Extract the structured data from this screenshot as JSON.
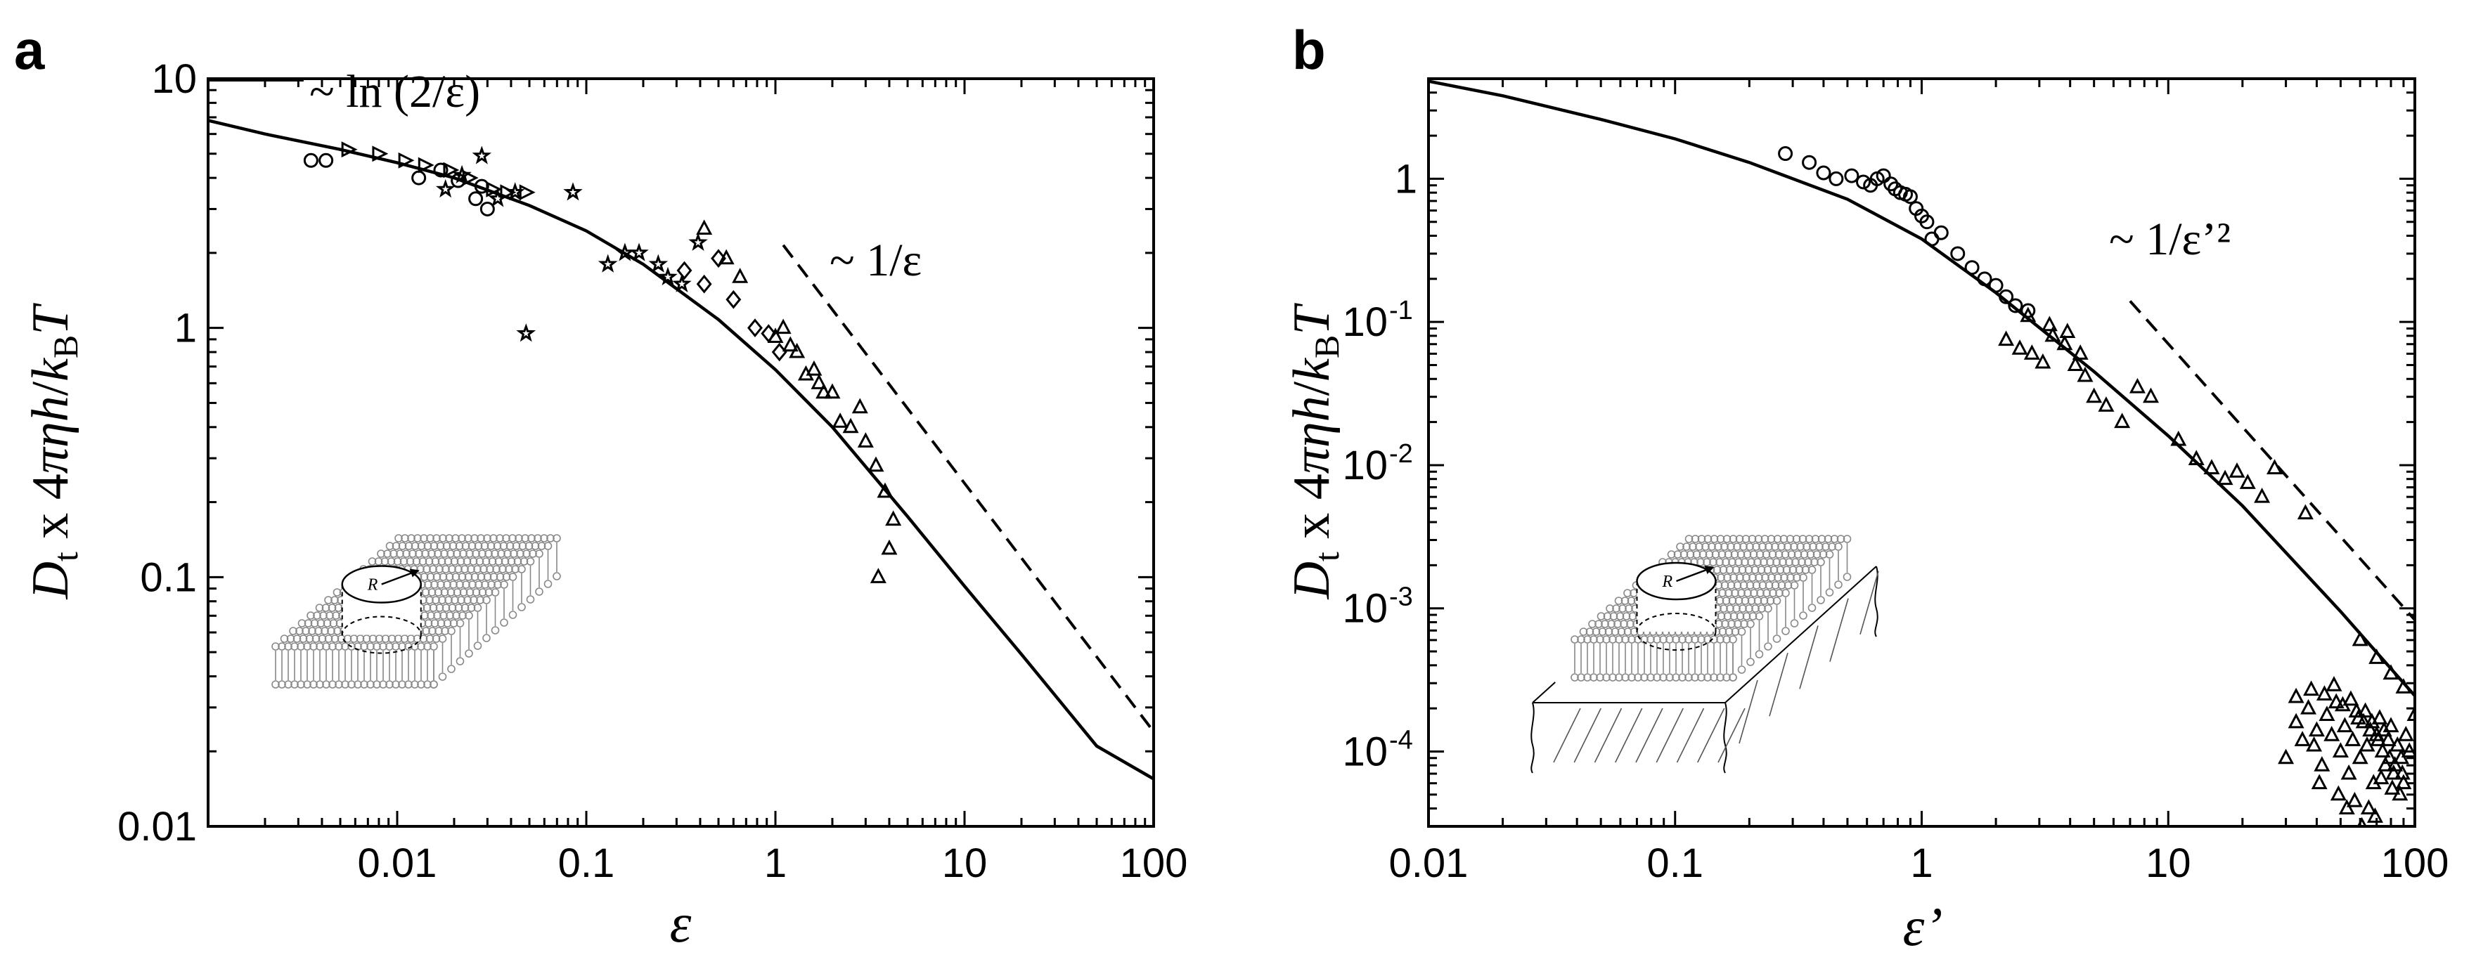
{
  "chart_data": [
    {
      "panel": "a",
      "type": "scatter",
      "xscale": "log",
      "yscale": "log",
      "xlim": [
        0.001,
        100
      ],
      "ylim": [
        0.01,
        10
      ],
      "xlabel": "ε",
      "ylabel": "D_t x 4πηh/k_BT",
      "ylabel_parts": {
        "main": "D",
        "sub_t": "t",
        "mid": " x 4πηh/k",
        "sub_b": "B",
        "end": "T"
      },
      "xticks": [
        {
          "v": 0.01,
          "label": "0.01"
        },
        {
          "v": 0.1,
          "label": "0.1"
        },
        {
          "v": 1,
          "label": "1"
        },
        {
          "v": 10,
          "label": "10"
        },
        {
          "v": 100,
          "label": "100"
        }
      ],
      "yticks": [
        {
          "v": 0.01,
          "label": "0.01"
        },
        {
          "v": 0.1,
          "label": "0.1"
        },
        {
          "v": 1,
          "label": "1"
        },
        {
          "v": 10,
          "label": "10"
        }
      ],
      "annotations": [
        "~ ln (2/ε)",
        "~ 1/ε"
      ],
      "inset_label": "R",
      "theory_curve": {
        "name": "theory",
        "x": [
          0.001,
          0.002,
          0.005,
          0.01,
          0.02,
          0.05,
          0.1,
          0.2,
          0.5,
          1,
          2,
          5,
          10,
          20,
          50,
          100
        ],
        "y": [
          6.8,
          6.0,
          5.2,
          4.6,
          4.0,
          3.1,
          2.45,
          1.8,
          1.08,
          0.68,
          0.4,
          0.175,
          0.092,
          0.049,
          0.021,
          0.0155
        ]
      },
      "asymptote_short": {
        "name": "~ ln (2/ε)",
        "x": [
          0.001,
          0.0032
        ],
        "y": [
          9.9,
          9.9
        ]
      },
      "asymptote_long": {
        "name": "~ 1/ε",
        "x": [
          1.1,
          100
        ],
        "y": [
          2.15,
          0.024
        ]
      },
      "series": [
        {
          "name": "circles",
          "marker": "circle",
          "x": [
            0.0035,
            0.0042,
            0.013,
            0.017,
            0.021,
            0.026,
            0.028,
            0.03
          ],
          "y": [
            4.7,
            4.7,
            4.0,
            4.3,
            3.9,
            3.3,
            3.7,
            3.0
          ]
        },
        {
          "name": "right-triangles",
          "marker": "triangle-right",
          "x": [
            0.0055,
            0.008,
            0.011,
            0.014,
            0.019,
            0.024,
            0.032,
            0.038,
            0.048
          ],
          "y": [
            5.2,
            5.0,
            4.7,
            4.5,
            4.3,
            4.0,
            3.6,
            3.5,
            3.5
          ]
        },
        {
          "name": "stars",
          "marker": "star",
          "x": [
            0.018,
            0.022,
            0.028,
            0.034,
            0.042,
            0.048,
            0.085,
            0.13,
            0.16,
            0.19,
            0.24,
            0.27,
            0.32,
            0.39
          ],
          "y": [
            3.6,
            4.1,
            4.9,
            3.3,
            3.5,
            0.95,
            3.5,
            1.8,
            2.0,
            2.0,
            1.8,
            1.6,
            1.5,
            2.2
          ]
        },
        {
          "name": "diamonds",
          "marker": "diamond",
          "x": [
            0.33,
            0.42,
            0.5,
            0.6,
            0.78,
            0.92,
            1.05
          ],
          "y": [
            1.7,
            1.5,
            1.9,
            1.3,
            1.0,
            0.95,
            0.8
          ]
        },
        {
          "name": "triangles",
          "marker": "triangle",
          "x": [
            0.42,
            0.55,
            0.65,
            1.0,
            1.1,
            1.2,
            1.3,
            1.45,
            1.6,
            1.7,
            1.8,
            2.0,
            2.2,
            2.5,
            2.8,
            3.0,
            3.4,
            3.8,
            4.2,
            3.5,
            4.0
          ],
          "y": [
            2.5,
            1.9,
            1.6,
            0.92,
            1.0,
            0.85,
            0.8,
            0.65,
            0.68,
            0.6,
            0.55,
            0.55,
            0.42,
            0.4,
            0.48,
            0.35,
            0.28,
            0.22,
            0.17,
            0.1,
            0.13
          ]
        }
      ]
    },
    {
      "panel": "b",
      "type": "scatter",
      "xscale": "log",
      "yscale": "log",
      "xlim": [
        0.01,
        100
      ],
      "ylim": [
        3e-05,
        5
      ],
      "xlabel": "ε’",
      "ylabel": "D_t x 4πηh/k_BT",
      "ylabel_parts": {
        "main": "D",
        "sub_t": "t",
        "mid": " x 4πηh/k",
        "sub_b": "B",
        "end": "T"
      },
      "xticks": [
        {
          "v": 0.01,
          "label": "0.01"
        },
        {
          "v": 0.1,
          "label": "0.1"
        },
        {
          "v": 1,
          "label": "1"
        },
        {
          "v": 10,
          "label": "10"
        },
        {
          "v": 100,
          "label": "100"
        }
      ],
      "yticks": [
        {
          "v": 1,
          "label": "1",
          "exp": ""
        },
        {
          "v": 0.1,
          "label": "10",
          "exp": "-1"
        },
        {
          "v": 0.01,
          "label": "10",
          "exp": "-2"
        },
        {
          "v": 0.001,
          "label": "10",
          "exp": "-3"
        },
        {
          "v": 0.0001,
          "label": "10",
          "exp": "-4"
        }
      ],
      "annotations": [
        "~ 1/ε’²"
      ],
      "inset_label": "R",
      "theory_curve": {
        "name": "theory",
        "x": [
          0.01,
          0.02,
          0.05,
          0.1,
          0.2,
          0.5,
          1,
          2,
          5,
          10,
          20,
          50,
          100
        ],
        "y": [
          4.8,
          3.8,
          2.6,
          1.9,
          1.3,
          0.72,
          0.38,
          0.16,
          0.045,
          0.016,
          0.0052,
          0.00095,
          0.000245
        ]
      },
      "asymptote_long": {
        "name": "~ 1/ε’²",
        "x": [
          7,
          100
        ],
        "y": [
          0.14,
          0.00083
        ]
      },
      "series": [
        {
          "name": "circles",
          "marker": "circle",
          "x": [
            0.28,
            0.35,
            0.4,
            0.45,
            0.52,
            0.58,
            0.62,
            0.66,
            0.7,
            0.75,
            0.78,
            0.82,
            0.86,
            0.9,
            0.95,
            1.0,
            1.05,
            1.1,
            1.2,
            1.4,
            1.6,
            1.8,
            2.0,
            2.2,
            2.4,
            2.7
          ],
          "y": [
            1.5,
            1.3,
            1.1,
            1.0,
            1.05,
            0.95,
            0.9,
            1.0,
            1.05,
            0.92,
            0.85,
            0.8,
            0.78,
            0.75,
            0.62,
            0.55,
            0.5,
            0.38,
            0.42,
            0.3,
            0.24,
            0.2,
            0.18,
            0.15,
            0.13,
            0.12
          ]
        },
        {
          "name": "triangles",
          "marker": "triangle",
          "x": [
            2.2,
            2.5,
            2.8,
            3.1,
            3.4,
            3.8,
            4.2,
            4.6,
            5.0,
            5.6,
            2.7,
            3.3,
            3.9,
            4.4,
            6.5,
            7.5,
            8.5,
            11,
            13,
            15,
            17,
            19,
            21,
            24,
            27,
            36,
            60,
            70,
            80,
            90,
            100
          ],
          "y": [
            0.075,
            0.065,
            0.06,
            0.052,
            0.08,
            0.07,
            0.05,
            0.042,
            0.03,
            0.026,
            0.11,
            0.095,
            0.085,
            0.06,
            0.02,
            0.035,
            0.03,
            0.015,
            0.011,
            0.0095,
            0.008,
            0.009,
            0.0075,
            0.006,
            0.0095,
            0.0046,
            0.0006,
            0.00045,
            0.00035,
            0.00028,
            0.00018
          ]
        },
        {
          "name": "triangles-cluster",
          "marker": "triangle",
          "x": [
            30,
            33,
            35,
            37,
            39,
            40,
            42,
            44,
            46,
            48,
            50,
            52,
            54,
            56,
            58,
            60,
            62,
            64,
            66,
            68,
            70,
            72,
            74,
            76,
            78,
            80,
            82,
            85,
            88,
            90,
            92,
            95,
            33,
            38,
            43,
            47,
            51,
            55,
            59,
            63,
            67,
            71,
            75,
            79,
            83,
            87,
            41,
            49,
            57,
            65,
            73,
            81,
            89,
            53,
            61,
            69
          ],
          "y": [
            9e-05,
            0.00016,
            0.00012,
            0.0002,
            0.00011,
            0.00014,
            8e-05,
            0.00018,
            0.00013,
            0.00022,
            0.0001,
            0.00015,
            7e-05,
            0.00012,
            0.00019,
            9e-05,
            0.00016,
            0.00011,
            0.00014,
            6e-05,
            0.00013,
            0.00017,
            0.0001,
            8e-05,
            0.00012,
            0.00015,
            7e-05,
            0.00011,
            9e-05,
            6e-05,
            0.00013,
            0.0001,
            0.00024,
            0.00027,
            0.00025,
            0.00029,
            0.00021,
            0.00023,
            0.00017,
            0.00019,
            0.00016,
            0.00012,
            0.00014,
            9e-05,
            8e-05,
            5e-05,
            6e-05,
            5e-05,
            4.5e-05,
            4e-05,
            6.5e-05,
            5.5e-05,
            7e-05,
            4e-05,
            3e-05,
            3.5e-05
          ]
        }
      ]
    }
  ]
}
